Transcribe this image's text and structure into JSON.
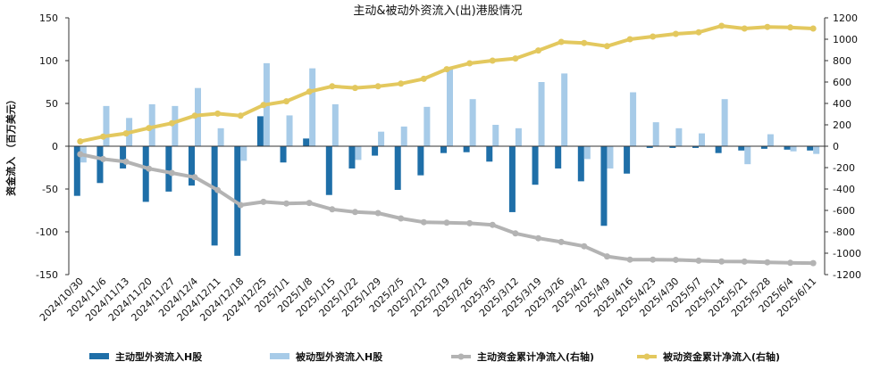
{
  "chart_data": {
    "type": "bar",
    "title": "主动&被动外资流入(出)港股情况",
    "ylabel": "资金流入 （百万美元）",
    "ylim_left": [
      -150,
      150
    ],
    "ylim_right": [
      -1200,
      1200
    ],
    "left_ticks": [
      "150",
      "100",
      "50",
      "0",
      "-50",
      "-100",
      "-150"
    ],
    "right_ticks": [
      "1200",
      "1000",
      "800",
      "600",
      "400",
      "200",
      "0",
      "-200",
      "-400",
      "-600",
      "-800",
      "-1000",
      "-1200"
    ],
    "grid": false,
    "legend_position": "bottom",
    "categories": [
      "2024/10/30",
      "2024/11/6",
      "2024/11/13",
      "2024/11/20",
      "2024/11/27",
      "2024/12/4",
      "2024/12/11",
      "2024/12/18",
      "2024/12/25",
      "2025/1/1",
      "2025/1/8",
      "2025/1/15",
      "2025/1/22",
      "2025/1/29",
      "2025/2/5",
      "2025/2/12",
      "2025/2/19",
      "2025/2/26",
      "2025/3/5",
      "2025/3/12",
      "2025/3/19",
      "2025/3/26",
      "2025/4/2",
      "2025/4/9",
      "2025/4/16",
      "2025/4/23",
      "2025/4/30",
      "2025/5/7",
      "2025/5/14",
      "2025/5/21",
      "2025/5/28",
      "2025/6/4",
      "2025/6/11"
    ],
    "series": [
      {
        "name": "主动型外资流入H股",
        "type": "bar",
        "axis": "left",
        "color": "#1f6fa8",
        "values": [
          -58,
          -43,
          -26,
          -65,
          -53,
          -46,
          -116,
          -128,
          35,
          -19,
          9,
          -57,
          -26,
          -11,
          -51,
          -34,
          -8,
          -7,
          -18,
          -77,
          -45,
          -26,
          -41,
          -93,
          -32,
          -2,
          -2,
          -2,
          -8,
          -5,
          -3,
          -4,
          -5
        ]
      },
      {
        "name": "被动型外资流入H股",
        "type": "bar",
        "axis": "left",
        "color": "#a7cbe8",
        "values": [
          -19,
          47,
          33,
          49,
          47,
          68,
          21,
          -17,
          97,
          36,
          91,
          49,
          -16,
          17,
          23,
          46,
          90,
          55,
          25,
          21,
          75,
          85,
          -15,
          -26,
          63,
          28,
          21,
          15,
          55,
          -21,
          14,
          -6,
          -9
        ]
      },
      {
        "name": "主动资金累计净流入(右轴)",
        "type": "line",
        "axis": "right",
        "color": "#b3b3b3",
        "values": [
          -75,
          -120,
          -145,
          -210,
          -250,
          -290,
          -410,
          -550,
          -520,
          -535,
          -530,
          -590,
          -615,
          -625,
          -675,
          -710,
          -715,
          -720,
          -735,
          -815,
          -860,
          -895,
          -935,
          -1030,
          -1060,
          -1060,
          -1062,
          -1070,
          -1077,
          -1078,
          -1085,
          -1090,
          -1093
        ]
      },
      {
        "name": "被动资金累计净流入(右轴)",
        "type": "line",
        "axis": "right",
        "color": "#e3c85e",
        "values": [
          45,
          90,
          120,
          170,
          215,
          285,
          305,
          285,
          385,
          420,
          510,
          560,
          545,
          560,
          585,
          630,
          720,
          775,
          800,
          820,
          895,
          975,
          965,
          935,
          1000,
          1025,
          1050,
          1065,
          1125,
          1100,
          1115,
          1110,
          1100
        ]
      }
    ]
  }
}
